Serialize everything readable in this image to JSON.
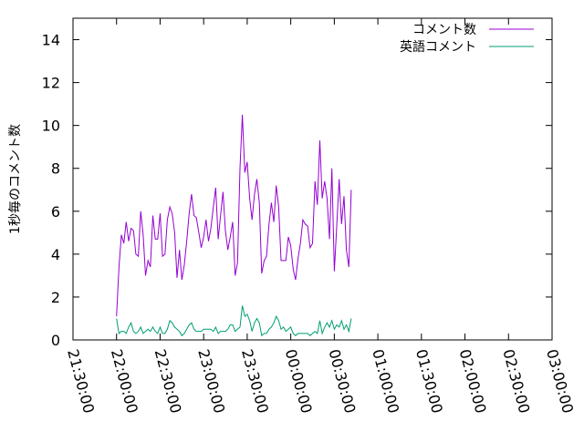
{
  "chart_data": {
    "type": "line",
    "ylabel": "1秒毎のコメント数",
    "ylim": [
      0,
      15
    ],
    "yticks": [
      0,
      2,
      4,
      6,
      8,
      10,
      12,
      14
    ],
    "xlim": [
      "21:30:00",
      "03:00:00"
    ],
    "xticks": [
      "21:30:00",
      "22:00:00",
      "22:30:00",
      "23:00:00",
      "23:30:00",
      "00:00:00",
      "00:30:00",
      "01:00:00",
      "01:30:00",
      "02:00:00",
      "02:30:00",
      "03:00:00"
    ],
    "legend_position": "top-right",
    "grid": false,
    "series": [
      {
        "name": "コメント数",
        "color": "#9400d3",
        "points": [
          [
            "22:00:00",
            1.1
          ],
          [
            "22:01:40",
            3.4
          ],
          [
            "22:03:20",
            4.9
          ],
          [
            "22:05:00",
            4.5
          ],
          [
            "22:06:40",
            5.5
          ],
          [
            "22:08:20",
            4.6
          ],
          [
            "22:10:00",
            5.2
          ],
          [
            "22:11:40",
            5.1
          ],
          [
            "22:13:20",
            4.0
          ],
          [
            "22:15:00",
            3.9
          ],
          [
            "22:16:40",
            6.0
          ],
          [
            "22:18:20",
            4.9
          ],
          [
            "22:20:00",
            3.0
          ],
          [
            "22:21:40",
            3.7
          ],
          [
            "22:23:20",
            3.4
          ],
          [
            "22:25:00",
            5.8
          ],
          [
            "22:26:40",
            4.7
          ],
          [
            "22:28:20",
            4.7
          ],
          [
            "22:30:00",
            5.9
          ],
          [
            "22:31:40",
            3.9
          ],
          [
            "22:33:20",
            4.0
          ],
          [
            "22:35:00",
            5.6
          ],
          [
            "22:36:40",
            6.2
          ],
          [
            "22:38:20",
            5.9
          ],
          [
            "22:40:00",
            5.0
          ],
          [
            "22:41:40",
            2.9
          ],
          [
            "22:43:20",
            4.2
          ],
          [
            "22:45:00",
            2.8
          ],
          [
            "22:46:40",
            3.5
          ],
          [
            "22:48:20",
            4.6
          ],
          [
            "22:50:00",
            5.9
          ],
          [
            "22:51:40",
            6.8
          ],
          [
            "22:53:20",
            5.8
          ],
          [
            "22:55:00",
            5.7
          ],
          [
            "22:56:40",
            5.0
          ],
          [
            "22:58:20",
            4.3
          ],
          [
            "23:00:00",
            4.8
          ],
          [
            "23:01:40",
            5.6
          ],
          [
            "23:03:20",
            4.6
          ],
          [
            "23:05:00",
            5.2
          ],
          [
            "23:06:40",
            6.2
          ],
          [
            "23:08:20",
            7.1
          ],
          [
            "23:10:00",
            4.7
          ],
          [
            "23:11:40",
            5.8
          ],
          [
            "23:13:20",
            6.9
          ],
          [
            "23:15:00",
            5.1
          ],
          [
            "23:16:40",
            4.2
          ],
          [
            "23:18:20",
            4.8
          ],
          [
            "23:20:00",
            5.5
          ],
          [
            "23:21:40",
            3.0
          ],
          [
            "23:23:20",
            3.6
          ],
          [
            "23:25:00",
            8.0
          ],
          [
            "23:26:40",
            10.5
          ],
          [
            "23:28:20",
            7.8
          ],
          [
            "23:30:00",
            8.3
          ],
          [
            "23:31:40",
            6.6
          ],
          [
            "23:33:20",
            5.6
          ],
          [
            "23:35:00",
            6.8
          ],
          [
            "23:36:40",
            7.5
          ],
          [
            "23:38:20",
            6.4
          ],
          [
            "23:40:00",
            3.1
          ],
          [
            "23:41:40",
            3.7
          ],
          [
            "23:43:20",
            3.9
          ],
          [
            "23:45:00",
            5.4
          ],
          [
            "23:46:40",
            6.4
          ],
          [
            "23:48:20",
            5.5
          ],
          [
            "23:50:00",
            7.2
          ],
          [
            "23:51:40",
            6.2
          ],
          [
            "23:53:20",
            3.7
          ],
          [
            "23:55:00",
            3.7
          ],
          [
            "23:56:40",
            3.7
          ],
          [
            "23:58:20",
            4.8
          ],
          [
            "00:00:00",
            4.4
          ],
          [
            "00:01:40",
            3.3
          ],
          [
            "00:03:20",
            2.8
          ],
          [
            "00:05:00",
            3.8
          ],
          [
            "00:06:40",
            4.5
          ],
          [
            "00:08:20",
            5.6
          ],
          [
            "00:10:00",
            5.4
          ],
          [
            "00:11:40",
            5.3
          ],
          [
            "00:13:20",
            4.3
          ],
          [
            "00:15:00",
            4.5
          ],
          [
            "00:16:40",
            7.4
          ],
          [
            "00:18:20",
            6.3
          ],
          [
            "00:20:00",
            9.3
          ],
          [
            "00:21:40",
            6.6
          ],
          [
            "00:23:20",
            7.4
          ],
          [
            "00:25:00",
            6.6
          ],
          [
            "00:26:40",
            4.7
          ],
          [
            "00:28:20",
            8.0
          ],
          [
            "00:30:00",
            3.2
          ],
          [
            "00:31:40",
            5.3
          ],
          [
            "00:33:20",
            7.5
          ],
          [
            "00:35:00",
            5.4
          ],
          [
            "00:36:40",
            6.7
          ],
          [
            "00:38:20",
            4.2
          ],
          [
            "00:40:00",
            3.4
          ],
          [
            "00:41:40",
            7.0
          ]
        ]
      },
      {
        "name": "英語コメント",
        "color": "#009e73",
        "points": [
          [
            "22:00:00",
            1.0
          ],
          [
            "22:01:40",
            0.3
          ],
          [
            "22:03:20",
            0.4
          ],
          [
            "22:05:00",
            0.4
          ],
          [
            "22:06:40",
            0.3
          ],
          [
            "22:08:20",
            0.6
          ],
          [
            "22:10:00",
            0.8
          ],
          [
            "22:11:40",
            0.4
          ],
          [
            "22:13:20",
            0.3
          ],
          [
            "22:15:00",
            0.4
          ],
          [
            "22:16:40",
            0.6
          ],
          [
            "22:18:20",
            0.3
          ],
          [
            "22:20:00",
            0.4
          ],
          [
            "22:21:40",
            0.5
          ],
          [
            "22:23:20",
            0.4
          ],
          [
            "22:25:00",
            0.6
          ],
          [
            "22:26:40",
            0.4
          ],
          [
            "22:28:20",
            0.3
          ],
          [
            "22:30:00",
            0.6
          ],
          [
            "22:31:40",
            0.3
          ],
          [
            "22:33:20",
            0.3
          ],
          [
            "22:35:00",
            0.5
          ],
          [
            "22:36:40",
            0.9
          ],
          [
            "22:38:20",
            0.8
          ],
          [
            "22:40:00",
            0.6
          ],
          [
            "22:41:40",
            0.5
          ],
          [
            "22:43:20",
            0.4
          ],
          [
            "22:45:00",
            0.2
          ],
          [
            "22:46:40",
            0.3
          ],
          [
            "22:48:20",
            0.5
          ],
          [
            "22:50:00",
            0.7
          ],
          [
            "22:51:40",
            0.8
          ],
          [
            "22:53:20",
            0.5
          ],
          [
            "22:55:00",
            0.4
          ],
          [
            "22:56:40",
            0.4
          ],
          [
            "22:58:20",
            0.4
          ],
          [
            "23:00:00",
            0.5
          ],
          [
            "23:01:40",
            0.5
          ],
          [
            "23:03:20",
            0.5
          ],
          [
            "23:05:00",
            0.5
          ],
          [
            "23:06:40",
            0.4
          ],
          [
            "23:08:20",
            0.6
          ],
          [
            "23:10:00",
            0.3
          ],
          [
            "23:11:40",
            0.4
          ],
          [
            "23:13:20",
            0.4
          ],
          [
            "23:15:00",
            0.4
          ],
          [
            "23:16:40",
            0.5
          ],
          [
            "23:18:20",
            0.7
          ],
          [
            "23:20:00",
            0.7
          ],
          [
            "23:21:40",
            0.4
          ],
          [
            "23:23:20",
            0.5
          ],
          [
            "23:25:00",
            0.6
          ],
          [
            "23:26:40",
            1.6
          ],
          [
            "23:28:20",
            1.1
          ],
          [
            "23:30:00",
            1.2
          ],
          [
            "23:31:40",
            0.9
          ],
          [
            "23:33:20",
            0.4
          ],
          [
            "23:35:00",
            0.8
          ],
          [
            "23:36:40",
            1.0
          ],
          [
            "23:38:20",
            0.8
          ],
          [
            "23:40:00",
            0.2
          ],
          [
            "23:41:40",
            0.3
          ],
          [
            "23:43:20",
            0.3
          ],
          [
            "23:45:00",
            0.5
          ],
          [
            "23:46:40",
            0.6
          ],
          [
            "23:48:20",
            0.8
          ],
          [
            "23:50:00",
            1.1
          ],
          [
            "23:51:40",
            0.9
          ],
          [
            "23:53:20",
            0.5
          ],
          [
            "23:55:00",
            0.6
          ],
          [
            "23:56:40",
            0.4
          ],
          [
            "23:58:20",
            0.5
          ],
          [
            "00:00:00",
            0.6
          ],
          [
            "00:01:40",
            0.3
          ],
          [
            "00:03:20",
            0.2
          ],
          [
            "00:05:00",
            0.3
          ],
          [
            "00:06:40",
            0.3
          ],
          [
            "00:08:20",
            0.3
          ],
          [
            "00:10:00",
            0.3
          ],
          [
            "00:11:40",
            0.3
          ],
          [
            "00:13:20",
            0.2
          ],
          [
            "00:15:00",
            0.3
          ],
          [
            "00:16:40",
            0.4
          ],
          [
            "00:18:20",
            0.3
          ],
          [
            "00:20:00",
            0.9
          ],
          [
            "00:21:40",
            0.3
          ],
          [
            "00:23:20",
            0.6
          ],
          [
            "00:25:00",
            0.8
          ],
          [
            "00:26:40",
            0.6
          ],
          [
            "00:28:20",
            0.9
          ],
          [
            "00:30:00",
            0.5
          ],
          [
            "00:31:40",
            0.7
          ],
          [
            "00:33:20",
            0.6
          ],
          [
            "00:35:00",
            0.9
          ],
          [
            "00:36:40",
            0.5
          ],
          [
            "00:38:20",
            0.7
          ],
          [
            "00:40:00",
            0.4
          ],
          [
            "00:41:40",
            1.0
          ]
        ]
      }
    ]
  }
}
